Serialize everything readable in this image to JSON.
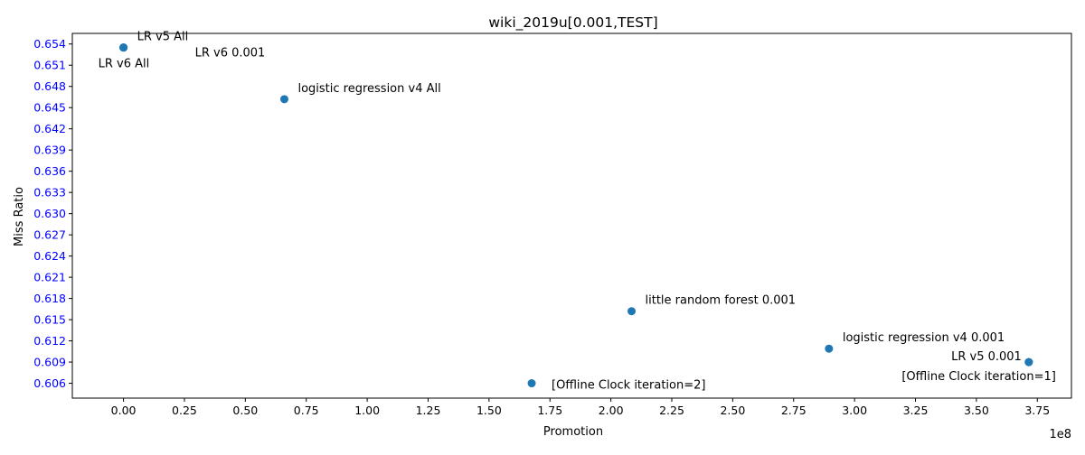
{
  "chart_data": {
    "type": "scatter",
    "title": "wiki_2019u[0.001,TEST]",
    "xlabel": "Promotion",
    "ylabel": "Miss Ratio",
    "x_offset_label": "1e8",
    "xlim": [
      -0.21,
      3.89
    ],
    "ylim": [
      0.6039,
      0.6555
    ],
    "x_scale_factor": 100000000,
    "x_ticks": [
      0.0,
      0.25,
      0.5,
      0.75,
      1.0,
      1.25,
      1.5,
      1.75,
      2.0,
      2.25,
      2.5,
      2.75,
      3.0,
      3.25,
      3.5,
      3.75
    ],
    "x_tick_labels": [
      "0.00",
      "0.25",
      "0.50",
      "0.75",
      "1.00",
      "1.25",
      "1.50",
      "1.75",
      "2.00",
      "2.25",
      "2.50",
      "2.75",
      "3.00",
      "3.25",
      "3.50",
      "3.75"
    ],
    "y_ticks": [
      0.606,
      0.609,
      0.612,
      0.615,
      0.618,
      0.621,
      0.624,
      0.627,
      0.63,
      0.633,
      0.636,
      0.639,
      0.642,
      0.645,
      0.648,
      0.651,
      0.654
    ],
    "y_tick_labels": [
      "0.606",
      "0.609",
      "0.612",
      "0.615",
      "0.618",
      "0.621",
      "0.624",
      "0.627",
      "0.630",
      "0.633",
      "0.636",
      "0.639",
      "0.642",
      "0.645",
      "0.648",
      "0.651",
      "0.654"
    ],
    "y_tick_color": "#0000ff",
    "point_color": "#1f77b4",
    "grid": false,
    "points": [
      {
        "x": 0.0,
        "y": 0.6535,
        "label": "LR v5 All",
        "label_pos": "above-right"
      },
      {
        "x": 0.0,
        "y": 0.6535,
        "label": "LR v6 All",
        "label_pos": "below-left"
      },
      {
        "x": 0.0,
        "y": 0.6535,
        "label": "LR v6 0.001",
        "label_pos": "far-right-below"
      },
      {
        "x": 0.66,
        "y": 0.6462,
        "label": "logistic regression v4 All",
        "label_pos": "above-right"
      },
      {
        "x": 2.085,
        "y": 0.6162,
        "label": "little random forest 0.001",
        "label_pos": "above-right"
      },
      {
        "x": 2.895,
        "y": 0.6109,
        "label": "logistic regression v4 0.001",
        "label_pos": "above-right"
      },
      {
        "x": 3.715,
        "y": 0.609,
        "label": "LR v5 0.001",
        "label_pos": "left"
      },
      {
        "x": 3.715,
        "y": 0.609,
        "label": "[Offline Clock iteration=1]",
        "label_pos": "below-left"
      },
      {
        "x": 1.675,
        "y": 0.606,
        "label": "[Offline Clock iteration=2]",
        "label_pos": "right"
      }
    ]
  }
}
